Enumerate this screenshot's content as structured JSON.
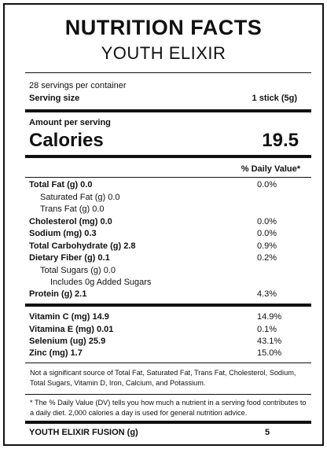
{
  "header": {
    "title": "NUTRITION FACTS",
    "subtitle": "YOUTH ELIXIR"
  },
  "serving": {
    "servings": "28 servings per container",
    "size_label": "Serving size",
    "size_value": "1 stick (5g)"
  },
  "calories": {
    "amount_label": "Amount per serving",
    "label": "Calories",
    "value": "19.5"
  },
  "nutrients": {
    "header": "% Daily Value*",
    "rows": [
      {
        "name": "Total Fat (g) 0.0",
        "dv": "0.0%"
      },
      {
        "name": "Saturated Fat (g) 0.0"
      },
      {
        "name": "Trans Fat (g) 0.0"
      },
      {
        "name": "Cholesterol (mg) 0.0",
        "dv": "0.0%"
      },
      {
        "name": "Sodium (mg) 0.3",
        "dv": "0.0%"
      },
      {
        "name": "Total Carbohydrate (g) 2.8",
        "dv": "0.9%"
      },
      {
        "name": "Dietary Fiber (g) 0.1",
        "dv": "0.2%"
      },
      {
        "name": "Total Sugars (g) 0.0"
      },
      {
        "name": "Includes 0g Added Sugars"
      },
      {
        "name": "Protein (g) 2.1",
        "dv": "4.3%"
      }
    ]
  },
  "vitamins": [
    {
      "name": "Vitamin C (mg) 14.9",
      "dv": "14.9%"
    },
    {
      "name": "Vitamina E (mg) 0.01",
      "dv": "0.1%"
    },
    {
      "name": "Selenium (ug) 25.9",
      "dv": "43.1%"
    },
    {
      "name": "Zinc (mg) 1.7",
      "dv": "15.0%"
    }
  ],
  "footnotes": [
    "Not a significant source of Total Fat, Saturated Fat, Trans Fat, Cholesterol, Sodium, Total Sugars, Vitamin D, Iron, Calcium, and Potassium.",
    "* The % Daily Value (DV) tells you how much a nutrient in a serving food contributes to a daily diet. 2,000 calories a day is used for general nutrition advice."
  ],
  "footer": {
    "label": "YOUTH ELIXIR FUSION (g)",
    "value": "5"
  }
}
